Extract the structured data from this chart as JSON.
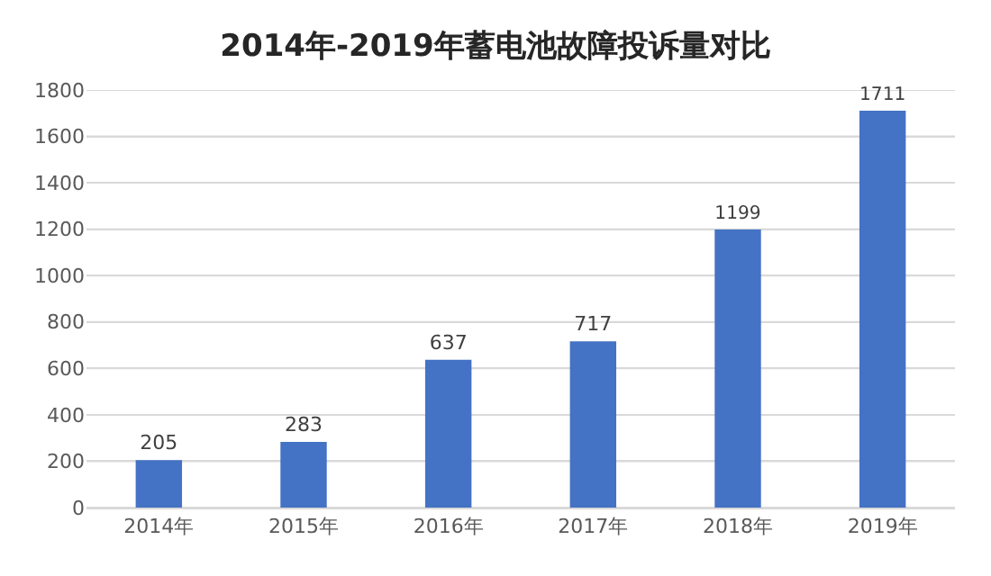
{
  "chart_data": {
    "type": "bar",
    "title": "2014年-2019年蓄电池故障投诉量对比",
    "categories": [
      "2014年",
      "2015年",
      "2016年",
      "2017年",
      "2018年",
      "2019年"
    ],
    "values": [
      205,
      283,
      637,
      717,
      1199,
      1711
    ],
    "color": "#4472c4",
    "ylim": [
      0,
      1800
    ],
    "yticks": [
      0,
      200,
      400,
      600,
      800,
      1000,
      1200,
      1400,
      1600,
      1800
    ],
    "grid": "y",
    "data_labels": true
  }
}
